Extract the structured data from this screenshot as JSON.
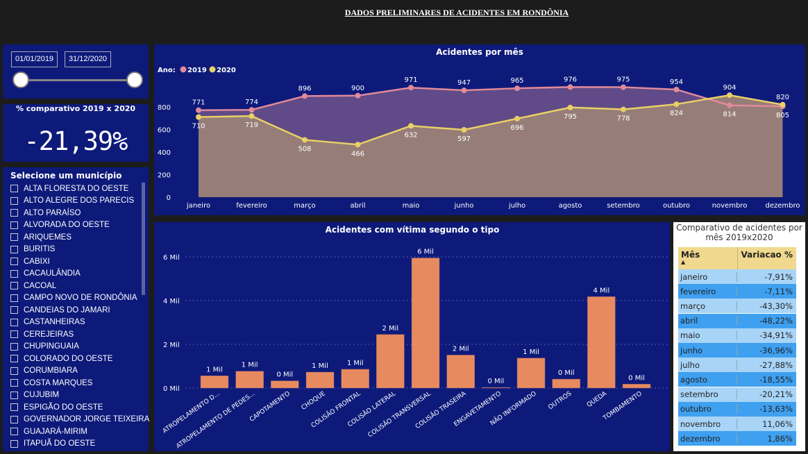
{
  "header": {
    "title": "DADOS PRELIMINARES DE ACIDENTES EM RONDÔNIA"
  },
  "date_slicer": {
    "start": "01/01/2019",
    "end": "31/12/2020",
    "range_fraction": [
      0,
      1
    ]
  },
  "kpi": {
    "label": "% comparativo 2019 x 2020",
    "value": "-21,39%"
  },
  "municipios": {
    "title": "Selecione um município",
    "items": [
      "ALTA FLORESTA DO OESTE",
      "ALTO ALEGRE DOS PARECIS",
      "ALTO PARAÍSO",
      "ALVORADA DO OESTE",
      "ARIQUEMES",
      "BURITIS",
      "CABIXI",
      "CACAULÂNDIA",
      "CACOAL",
      "CAMPO NOVO DE RONDÔNIA",
      "CANDEIAS DO JAMARI",
      "CASTANHEIRAS",
      "CEREJEIRAS",
      "CHUPINGUAIA",
      "COLORADO DO OESTE",
      "CORUMBIARA",
      "COSTA MARQUES",
      "CUJUBIM",
      "ESPIGÃO DO OESTE",
      "GOVERNADOR JORGE TEIXEIRA",
      "GUAJARÁ-MIRIM",
      "ITAPUÃ DO OESTE"
    ]
  },
  "table": {
    "title": "Comparativo de acidentes por mês 2019x2020",
    "headers": [
      "Mês",
      "Variacao %"
    ],
    "rows": [
      [
        "janeiro",
        "-7,91%"
      ],
      [
        "fevereiro",
        "-7,11%"
      ],
      [
        "março",
        "-43,30%"
      ],
      [
        "abril",
        "-48,22%"
      ],
      [
        "maio",
        "-34,91%"
      ],
      [
        "junho",
        "-36,96%"
      ],
      [
        "julho",
        "-27,88%"
      ],
      [
        "agosto",
        "-18,55%"
      ],
      [
        "setembro",
        "-20,21%"
      ],
      [
        "outubro",
        "-13,63%"
      ],
      [
        "novembro",
        "11,06%"
      ],
      [
        "dezembro",
        "1,86%"
      ]
    ],
    "colors": {
      "header": "#f0d98e",
      "row_light": "#a8d4f8",
      "row_dark": "#3fa0f0"
    }
  },
  "chart_data": [
    {
      "type": "area",
      "title": "Acidentes por mês",
      "legend_title": "Ano:",
      "legend_position": "top-left",
      "categories": [
        "janeiro",
        "fevereiro",
        "março",
        "abril",
        "maio",
        "junho",
        "julho",
        "agosto",
        "setembro",
        "outubro",
        "novembro",
        "dezembro"
      ],
      "yticks": [
        "0",
        "200",
        "400",
        "600",
        "800"
      ],
      "ylim": [
        0,
        1000
      ],
      "series": [
        {
          "name": "2019",
          "color": "#e08a9a",
          "fill": "#604a87",
          "values": [
            771,
            774,
            896,
            900,
            971,
            947,
            965,
            976,
            975,
            954,
            814,
            805
          ]
        },
        {
          "name": "2020",
          "color": "#e8d066",
          "fill": "#977d78",
          "values": [
            710,
            719,
            508,
            466,
            632,
            597,
            696,
            795,
            778,
            824,
            904,
            820
          ]
        }
      ]
    },
    {
      "type": "bar",
      "title": "Acidentes com vítima segundo o tipo",
      "color": "#e88a60",
      "grid": true,
      "yticks": [
        "0 Mil",
        "2 Mil",
        "4 Mil",
        "6 Mil"
      ],
      "ylim": [
        0,
        6000
      ],
      "categories": [
        "ATROPELAMENTO D...",
        "ATROPELAMENTO DE PEDES...",
        "CAPOTAMENTO",
        "CHOQUE",
        "COLISÃO FRONTAL",
        "COLISÃO LATERAL",
        "COLISÃO TRANSVERSAL",
        "COLISÃO TRASEIRA",
        "ENGAVETAMENTO",
        "NÃO INFORMADO",
        "OUTROS",
        "QUEDA",
        "TOMBAMENTO"
      ],
      "values": [
        560,
        770,
        330,
        730,
        860,
        2450,
        5950,
        1510,
        30,
        1370,
        410,
        4180,
        180
      ],
      "labels": [
        "1 Mil",
        "1 Mil",
        "0 Mil",
        "1 Mil",
        "1 Mil",
        "2 Mil",
        "6 Mil",
        "2 Mil",
        "0 Mil",
        "1 Mil",
        "0 Mil",
        "4 Mil",
        "0 Mil"
      ]
    }
  ]
}
